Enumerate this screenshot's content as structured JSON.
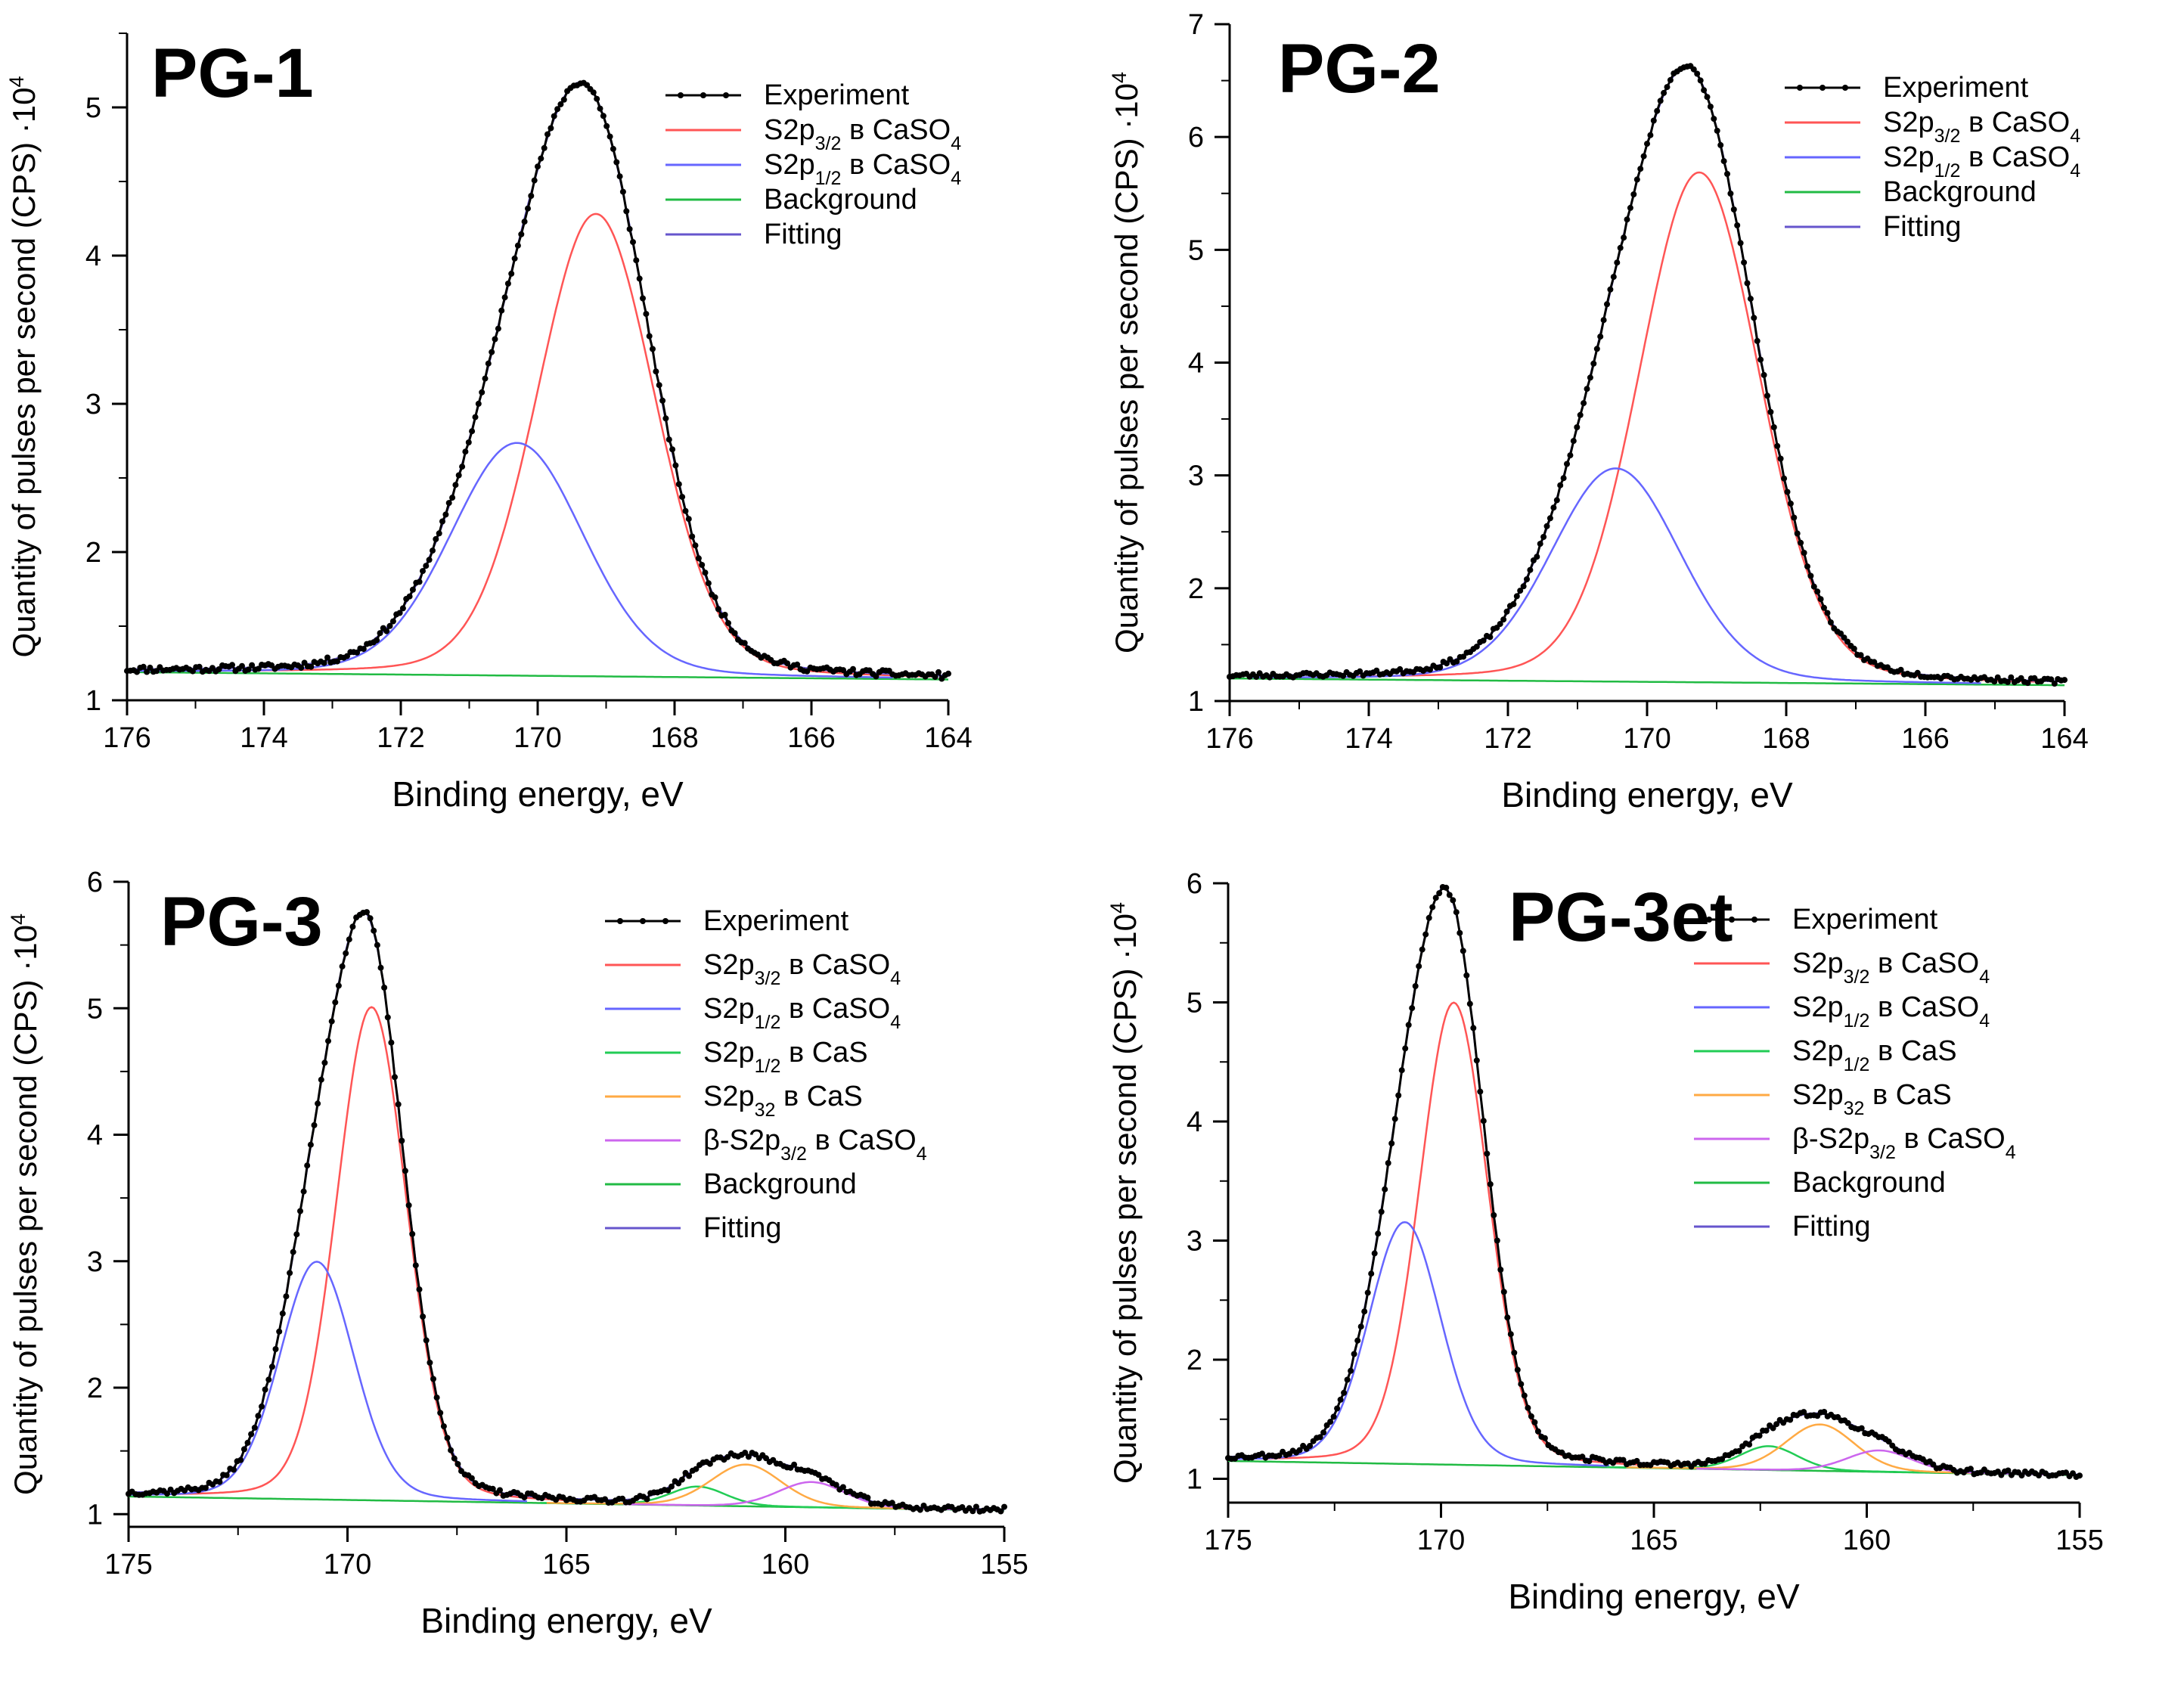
{
  "chart_data": [
    {
      "type": "line",
      "title": "PG-1",
      "xlabel": "Binding energy, eV",
      "ylabel": "Quantity of pulses per second  (CPS) ·10",
      "ylabel_exp": "4",
      "xlim": [
        176,
        164
      ],
      "ylim": [
        1,
        5.5
      ],
      "xticks": [
        176,
        174,
        172,
        170,
        168,
        166,
        164
      ],
      "yticks": [
        1,
        2,
        3,
        4,
        5
      ],
      "background": {
        "start": 1.19,
        "end": 1.14,
        "x0": 176,
        "x1": 164
      },
      "noise_seed": 11,
      "peaks": [
        {
          "name": "S2p3/2 CaSO4",
          "center": 169.15,
          "height": 3.12,
          "fwhm": 2.05,
          "color": "#ff5555"
        },
        {
          "name": "S2p1/2 CaSO4",
          "center": 170.3,
          "height": 1.57,
          "fwhm": 2.3,
          "color": "#6666ff"
        }
      ],
      "legend": [
        {
          "role": "experiment",
          "color": "#000000",
          "base": "Experiment",
          "sub": "",
          "suffix": "",
          "sub2": ""
        },
        {
          "role": "line",
          "color": "#ff5555",
          "base": "S2p",
          "sub": "3/2",
          "suffix": " в CaSO",
          "sub2": "4"
        },
        {
          "role": "line",
          "color": "#6666ff",
          "base": "S2p",
          "sub": "1/2",
          "suffix": " в CaSO",
          "sub2": "4"
        },
        {
          "role": "line",
          "color": "#22bb44",
          "base": "Background",
          "sub": "",
          "suffix": "",
          "sub2": ""
        },
        {
          "role": "line",
          "color": "#6655cc",
          "base": "Fitting",
          "sub": "",
          "suffix": "",
          "sub2": ""
        }
      ]
    },
    {
      "type": "line",
      "title": "PG-2",
      "xlabel": "Binding energy, eV",
      "ylabel": "Quantity of pulses per second  (CPS) ·10",
      "ylabel_exp": "4",
      "xlim": [
        176,
        164
      ],
      "ylim": [
        1,
        7
      ],
      "xticks": [
        176,
        174,
        172,
        170,
        168,
        166,
        164
      ],
      "yticks": [
        1,
        2,
        3,
        4,
        5,
        6,
        7
      ],
      "background": {
        "start": 1.2,
        "end": 1.14,
        "x0": 176,
        "x1": 164
      },
      "noise_seed": 23,
      "peaks": [
        {
          "name": "S2p3/2 CaSO4",
          "center": 169.25,
          "height": 4.52,
          "fwhm": 2.05,
          "color": "#ff5555"
        },
        {
          "name": "S2p1/2 CaSO4",
          "center": 170.45,
          "height": 1.89,
          "fwhm": 2.2,
          "color": "#6666ff"
        }
      ],
      "legend": [
        {
          "role": "experiment",
          "color": "#000000",
          "base": "Experiment",
          "sub": "",
          "suffix": "",
          "sub2": ""
        },
        {
          "role": "line",
          "color": "#ff5555",
          "base": "S2p",
          "sub": "3/2",
          "suffix": " в CaSO",
          "sub2": "4"
        },
        {
          "role": "line",
          "color": "#6666ff",
          "base": "S2p",
          "sub": "1/2",
          "suffix": " в CaSO",
          "sub2": "4"
        },
        {
          "role": "line",
          "color": "#22bb44",
          "base": "Background",
          "sub": "",
          "suffix": "",
          "sub2": ""
        },
        {
          "role": "line",
          "color": "#6655cc",
          "base": "Fitting",
          "sub": "",
          "suffix": "",
          "sub2": ""
        }
      ]
    },
    {
      "type": "line",
      "title": "PG-3",
      "xlabel": "Binding energy, eV",
      "ylabel": "Quantity of pulses per second  (CPS) ·10",
      "ylabel_exp": "4",
      "xlim": [
        175,
        155
      ],
      "ylim": [
        0.9,
        6
      ],
      "xticks": [
        175,
        170,
        165,
        160,
        155
      ],
      "yticks": [
        1,
        2,
        3,
        4,
        5,
        6
      ],
      "background": {
        "start": 1.14,
        "end": 1.03,
        "x0": 175,
        "x1": 155
      },
      "noise_seed": 37,
      "peaks": [
        {
          "name": "S2p3/2 CaSO4",
          "center": 169.45,
          "height": 3.9,
          "fwhm": 1.9,
          "color": "#ff5555"
        },
        {
          "name": "S2p1/2 CaSO4",
          "center": 170.7,
          "height": 1.88,
          "fwhm": 2.0,
          "color": "#6666ff"
        },
        {
          "name": "S2p1/2 CaS",
          "center": 162.0,
          "height": 0.15,
          "fwhm": 1.5,
          "color": "#22cc55"
        },
        {
          "name": "S2p32 CaS",
          "center": 160.9,
          "height": 0.33,
          "fwhm": 1.9,
          "color": "#ffaa44"
        },
        {
          "name": "beta-S2p3/2 CaSO4",
          "center": 159.4,
          "height": 0.2,
          "fwhm": 1.8,
          "color": "#cc66ee"
        }
      ],
      "legend": [
        {
          "role": "experiment",
          "color": "#000000",
          "base": "Experiment",
          "sub": "",
          "suffix": "",
          "sub2": ""
        },
        {
          "role": "line",
          "color": "#ff5555",
          "base": "S2p",
          "sub": "3/2",
          "suffix": " в CaSO",
          "sub2": "4"
        },
        {
          "role": "line",
          "color": "#6666ff",
          "base": "S2p",
          "sub": "1/2",
          "suffix": " в CaSO",
          "sub2": "4"
        },
        {
          "role": "line",
          "color": "#22cc55",
          "base": "S2p",
          "sub": "1/2",
          "suffix": " в CaS",
          "sub2": ""
        },
        {
          "role": "line",
          "color": "#ffaa44",
          "base": "S2p",
          "sub": "32",
          "suffix": " в CaS",
          "sub2": ""
        },
        {
          "role": "line",
          "color": "#cc66ee",
          "base": "β-S2p",
          "sub": "3/2",
          "suffix": " в CaSO",
          "sub2": "4"
        },
        {
          "role": "line",
          "color": "#22bb44",
          "base": "Background",
          "sub": "",
          "suffix": "",
          "sub2": ""
        },
        {
          "role": "line",
          "color": "#6655cc",
          "base": "Fitting",
          "sub": "",
          "suffix": "",
          "sub2": ""
        }
      ]
    },
    {
      "type": "line",
      "title": "PG-3et",
      "xlabel": "Binding energy, eV",
      "ylabel": "Quantity of pulses per second  (CPS) ·10",
      "ylabel_exp": "4",
      "xlim": [
        175,
        155
      ],
      "ylim": [
        0.8,
        6
      ],
      "xticks": [
        175,
        170,
        165,
        160,
        155
      ],
      "yticks": [
        1,
        2,
        3,
        4,
        5,
        6
      ],
      "background": {
        "start": 1.15,
        "end": 1.03,
        "x0": 175,
        "x1": 155
      },
      "noise_seed": 53,
      "peaks": [
        {
          "name": "S2p3/2 CaSO4",
          "center": 169.7,
          "height": 3.88,
          "fwhm": 1.9,
          "color": "#ff5555"
        },
        {
          "name": "S2p1/2 CaSO4",
          "center": 170.85,
          "height": 2.03,
          "fwhm": 2.0,
          "color": "#6666ff"
        },
        {
          "name": "S2p1/2 CaS",
          "center": 162.3,
          "height": 0.2,
          "fwhm": 1.6,
          "color": "#22cc55"
        },
        {
          "name": "S2p32 CaS",
          "center": 161.1,
          "height": 0.39,
          "fwhm": 1.9,
          "color": "#ffaa44"
        },
        {
          "name": "beta-S2p3/2 CaSO4",
          "center": 159.7,
          "height": 0.18,
          "fwhm": 1.8,
          "color": "#cc66ee"
        }
      ],
      "legend": [
        {
          "role": "experiment",
          "color": "#000000",
          "base": "Experiment",
          "sub": "",
          "suffix": "",
          "sub2": ""
        },
        {
          "role": "line",
          "color": "#ff5555",
          "base": "S2p",
          "sub": "3/2",
          "suffix": " в CaSO",
          "sub2": "4"
        },
        {
          "role": "line",
          "color": "#6666ff",
          "base": "S2p",
          "sub": "1/2",
          "suffix": " в CaSO",
          "sub2": "4"
        },
        {
          "role": "line",
          "color": "#22cc55",
          "base": "S2p",
          "sub": "1/2",
          "suffix": " в CaS",
          "sub2": ""
        },
        {
          "role": "line",
          "color": "#ffaa44",
          "base": "S2p",
          "sub": "32",
          "suffix": " в CaS",
          "sub2": ""
        },
        {
          "role": "line",
          "color": "#cc66ee",
          "base": "β-S2p",
          "sub": "3/2",
          "suffix": " в CaSO",
          "sub2": "4"
        },
        {
          "role": "line",
          "color": "#22bb44",
          "base": "Background",
          "sub": "",
          "suffix": "",
          "sub2": ""
        },
        {
          "role": "line",
          "color": "#6655cc",
          "base": "Fitting",
          "sub": "",
          "suffix": "",
          "sub2": ""
        }
      ]
    }
  ]
}
